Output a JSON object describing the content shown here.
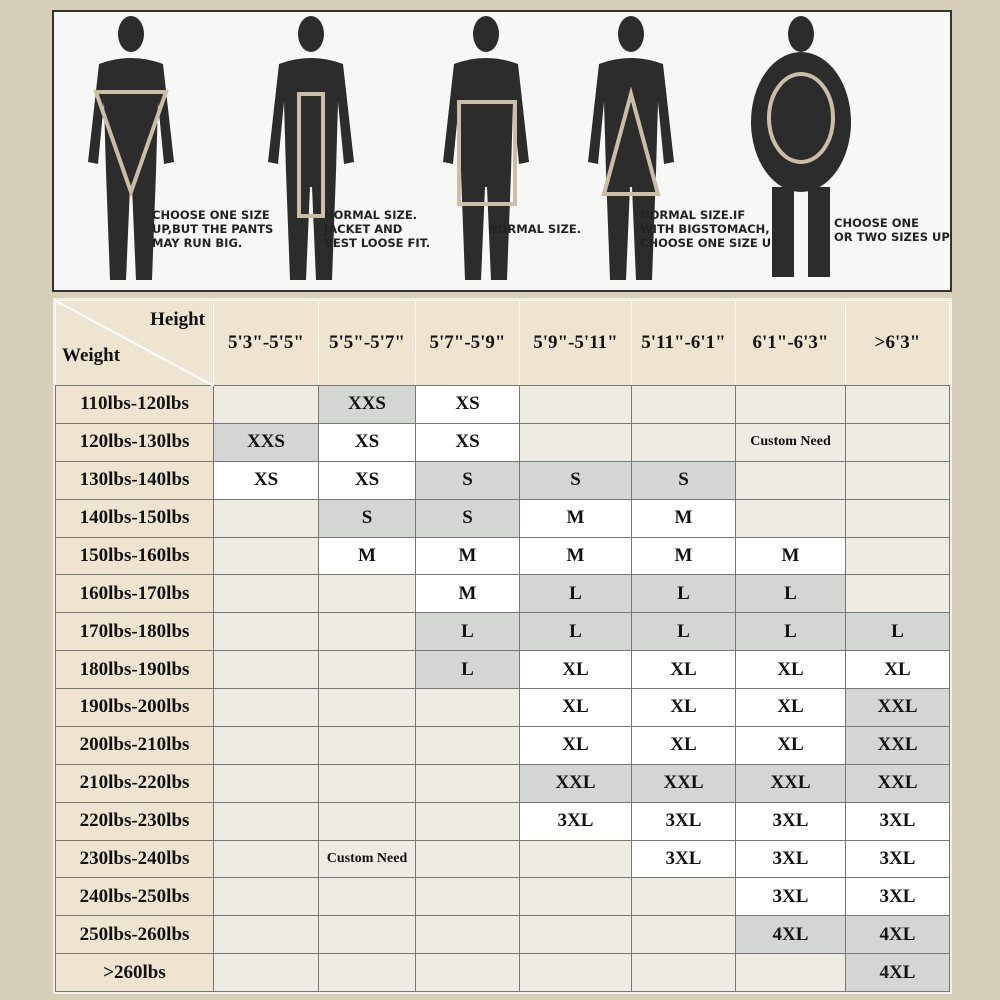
{
  "figures": [
    {
      "caption": "CHOOSE ONE SIZE\nUP,BUT THE PANTS\nMAY RUN BIG.",
      "shape": "inverted-triangle"
    },
    {
      "caption": "NORMAL SIZE.\nJACKET AND\nVEST LOOSE FIT.",
      "shape": "rectangle"
    },
    {
      "caption": "NORMAL SIZE.",
      "shape": "square"
    },
    {
      "caption": "NORMAL SIZE.IF\nWITH BIGSTOMACH,\nCHOOSE ONE SIZE UP",
      "shape": "triangle"
    },
    {
      "caption": "CHOOSE ONE\nOR TWO SIZES UP",
      "shape": "oval"
    }
  ],
  "table": {
    "corner_height": "Height",
    "corner_weight": "Weight",
    "heights": [
      "5'3\"-5'5\"",
      "5'5\"-5'7\"",
      "5'7\"-5'9\"",
      "5'9\"-5'11\"",
      "5'11\"-6'1\"",
      "6'1\"-6'3\"",
      ">6'3\""
    ],
    "rows": [
      {
        "weight": "110lbs-120lbs",
        "cells": [
          [
            "",
            "e"
          ],
          [
            "XXS",
            "g"
          ],
          [
            "XS",
            "wh"
          ],
          [
            "",
            "e"
          ],
          [
            "",
            "e"
          ],
          [
            "",
            "e"
          ],
          [
            "",
            "e"
          ]
        ]
      },
      {
        "weight": "120lbs-130lbs",
        "cells": [
          [
            "XXS",
            "g"
          ],
          [
            "XS",
            "wh"
          ],
          [
            "XS",
            "wh"
          ],
          [
            "",
            "e"
          ],
          [
            "",
            "e"
          ],
          [
            "Custom Need",
            "e"
          ],
          [
            "",
            "e"
          ]
        ]
      },
      {
        "weight": "130lbs-140lbs",
        "cells": [
          [
            "XS",
            "wh"
          ],
          [
            "XS",
            "wh"
          ],
          [
            "S",
            "g"
          ],
          [
            "S",
            "g"
          ],
          [
            "S",
            "g"
          ],
          [
            "",
            "e"
          ],
          [
            "",
            "e"
          ]
        ]
      },
      {
        "weight": "140lbs-150lbs",
        "cells": [
          [
            "",
            "e"
          ],
          [
            "S",
            "g"
          ],
          [
            "S",
            "g"
          ],
          [
            "M",
            "wh"
          ],
          [
            "M",
            "wh"
          ],
          [
            "",
            "e"
          ],
          [
            "",
            "e"
          ]
        ]
      },
      {
        "weight": "150lbs-160lbs",
        "cells": [
          [
            "",
            "e"
          ],
          [
            "M",
            "wh"
          ],
          [
            "M",
            "wh"
          ],
          [
            "M",
            "wh"
          ],
          [
            "M",
            "wh"
          ],
          [
            "M",
            "wh"
          ],
          [
            "",
            "e"
          ]
        ]
      },
      {
        "weight": "160lbs-170lbs",
        "cells": [
          [
            "",
            "e"
          ],
          [
            "",
            "e"
          ],
          [
            "M",
            "wh"
          ],
          [
            "L",
            "g"
          ],
          [
            "L",
            "g"
          ],
          [
            "L",
            "g"
          ],
          [
            "",
            "e"
          ]
        ]
      },
      {
        "weight": "170lbs-180lbs",
        "cells": [
          [
            "",
            "e"
          ],
          [
            "",
            "e"
          ],
          [
            "L",
            "g"
          ],
          [
            "L",
            "g"
          ],
          [
            "L",
            "g"
          ],
          [
            "L",
            "g"
          ],
          [
            "L",
            "g"
          ]
        ]
      },
      {
        "weight": "180lbs-190lbs",
        "cells": [
          [
            "",
            "e"
          ],
          [
            "",
            "e"
          ],
          [
            "L",
            "g"
          ],
          [
            "XL",
            "wh"
          ],
          [
            "XL",
            "wh"
          ],
          [
            "XL",
            "wh"
          ],
          [
            "XL",
            "wh"
          ]
        ]
      },
      {
        "weight": "190lbs-200lbs",
        "cells": [
          [
            "",
            "e"
          ],
          [
            "",
            "e"
          ],
          [
            "",
            "e"
          ],
          [
            "XL",
            "wh"
          ],
          [
            "XL",
            "wh"
          ],
          [
            "XL",
            "wh"
          ],
          [
            "XXL",
            "g"
          ]
        ]
      },
      {
        "weight": "200lbs-210lbs",
        "cells": [
          [
            "",
            "e"
          ],
          [
            "",
            "e"
          ],
          [
            "",
            "e"
          ],
          [
            "XL",
            "wh"
          ],
          [
            "XL",
            "wh"
          ],
          [
            "XL",
            "wh"
          ],
          [
            "XXL",
            "g"
          ]
        ]
      },
      {
        "weight": "210lbs-220lbs",
        "cells": [
          [
            "",
            "e"
          ],
          [
            "",
            "e"
          ],
          [
            "",
            "e"
          ],
          [
            "XXL",
            "g"
          ],
          [
            "XXL",
            "g"
          ],
          [
            "XXL",
            "g"
          ],
          [
            "XXL",
            "g"
          ]
        ]
      },
      {
        "weight": "220lbs-230lbs",
        "cells": [
          [
            "",
            "e"
          ],
          [
            "",
            "e"
          ],
          [
            "",
            "e"
          ],
          [
            "3XL",
            "wh"
          ],
          [
            "3XL",
            "wh"
          ],
          [
            "3XL",
            "wh"
          ],
          [
            "3XL",
            "wh"
          ]
        ]
      },
      {
        "weight": "230lbs-240lbs",
        "cells": [
          [
            "",
            "e"
          ],
          [
            "Custom Need",
            "e"
          ],
          [
            "",
            "e"
          ],
          [
            "",
            "e"
          ],
          [
            "3XL",
            "wh"
          ],
          [
            "3XL",
            "wh"
          ],
          [
            "3XL",
            "wh"
          ]
        ]
      },
      {
        "weight": "240lbs-250lbs",
        "cells": [
          [
            "",
            "e"
          ],
          [
            "",
            "e"
          ],
          [
            "",
            "e"
          ],
          [
            "",
            "e"
          ],
          [
            "",
            "e"
          ],
          [
            "3XL",
            "wh"
          ],
          [
            "3XL",
            "wh"
          ]
        ]
      },
      {
        "weight": "250lbs-260lbs",
        "cells": [
          [
            "",
            "e"
          ],
          [
            "",
            "e"
          ],
          [
            "",
            "e"
          ],
          [
            "",
            "e"
          ],
          [
            "",
            "e"
          ],
          [
            "4XL",
            "g"
          ],
          [
            "4XL",
            "g"
          ]
        ]
      },
      {
        "weight": ">260lbs",
        "cells": [
          [
            "",
            "e"
          ],
          [
            "",
            "e"
          ],
          [
            "",
            "e"
          ],
          [
            "",
            "e"
          ],
          [
            "",
            "e"
          ],
          [
            "",
            "e"
          ],
          [
            "4XL",
            "g"
          ]
        ]
      }
    ]
  }
}
